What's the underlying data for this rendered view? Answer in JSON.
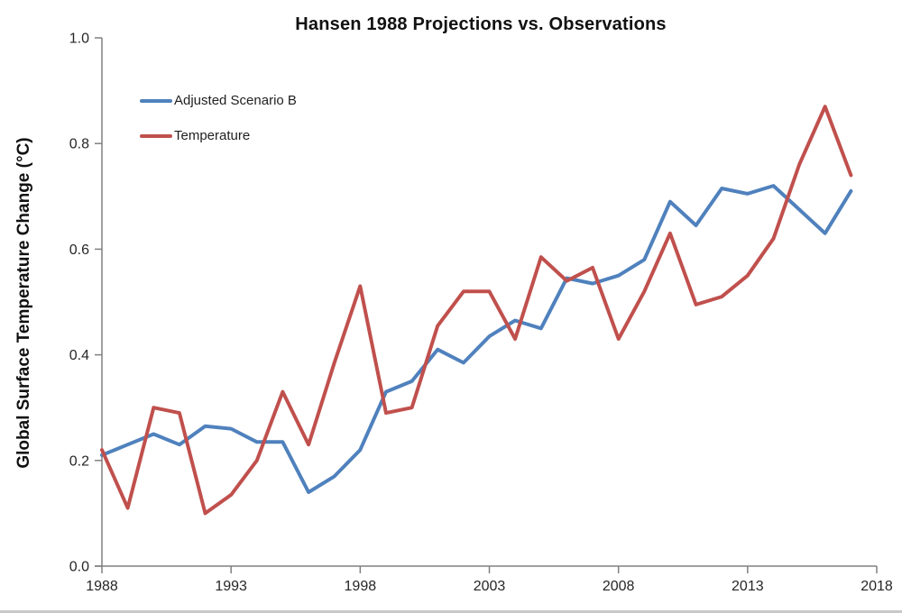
{
  "chart_data": {
    "type": "line",
    "title": "Hansen 1988 Projections vs. Observations",
    "xlabel": "",
    "ylabel": "Global Surface Temperature Change (°C)",
    "xlim": [
      1988,
      2018
    ],
    "ylim": [
      0.0,
      1.0
    ],
    "x_ticks": [
      1988,
      1993,
      1998,
      2003,
      2008,
      2013,
      2018
    ],
    "y_ticks": [
      0.0,
      0.2,
      0.4,
      0.6,
      0.8,
      1.0
    ],
    "grid": false,
    "legend_position": "top-left",
    "x": [
      1988,
      1989,
      1990,
      1991,
      1992,
      1993,
      1994,
      1995,
      1996,
      1997,
      1998,
      1999,
      2000,
      2001,
      2002,
      2003,
      2004,
      2005,
      2006,
      2007,
      2008,
      2009,
      2010,
      2011,
      2012,
      2013,
      2014,
      2015,
      2016,
      2017
    ],
    "series": [
      {
        "name": "Adjusted Scenario B",
        "color": "#4F81BD",
        "values": [
          0.21,
          0.23,
          0.25,
          0.23,
          0.265,
          0.26,
          0.235,
          0.235,
          0.14,
          0.17,
          0.22,
          0.33,
          0.35,
          0.41,
          0.385,
          0.435,
          0.465,
          0.45,
          0.545,
          0.535,
          0.55,
          0.58,
          0.69,
          0.645,
          0.715,
          0.705,
          0.72,
          0.675,
          0.63,
          0.71
        ]
      },
      {
        "name": "Temperature",
        "color": "#C0504D",
        "values": [
          0.22,
          0.11,
          0.3,
          0.29,
          0.1,
          0.135,
          0.2,
          0.33,
          0.23,
          0.385,
          0.53,
          0.29,
          0.3,
          0.455,
          0.52,
          0.52,
          0.43,
          0.585,
          0.54,
          0.565,
          0.43,
          0.52,
          0.63,
          0.495,
          0.51,
          0.55,
          0.62,
          0.76,
          0.87,
          0.74
        ]
      }
    ],
    "axis_color": "#808080",
    "tick_label_color": "#262626"
  }
}
